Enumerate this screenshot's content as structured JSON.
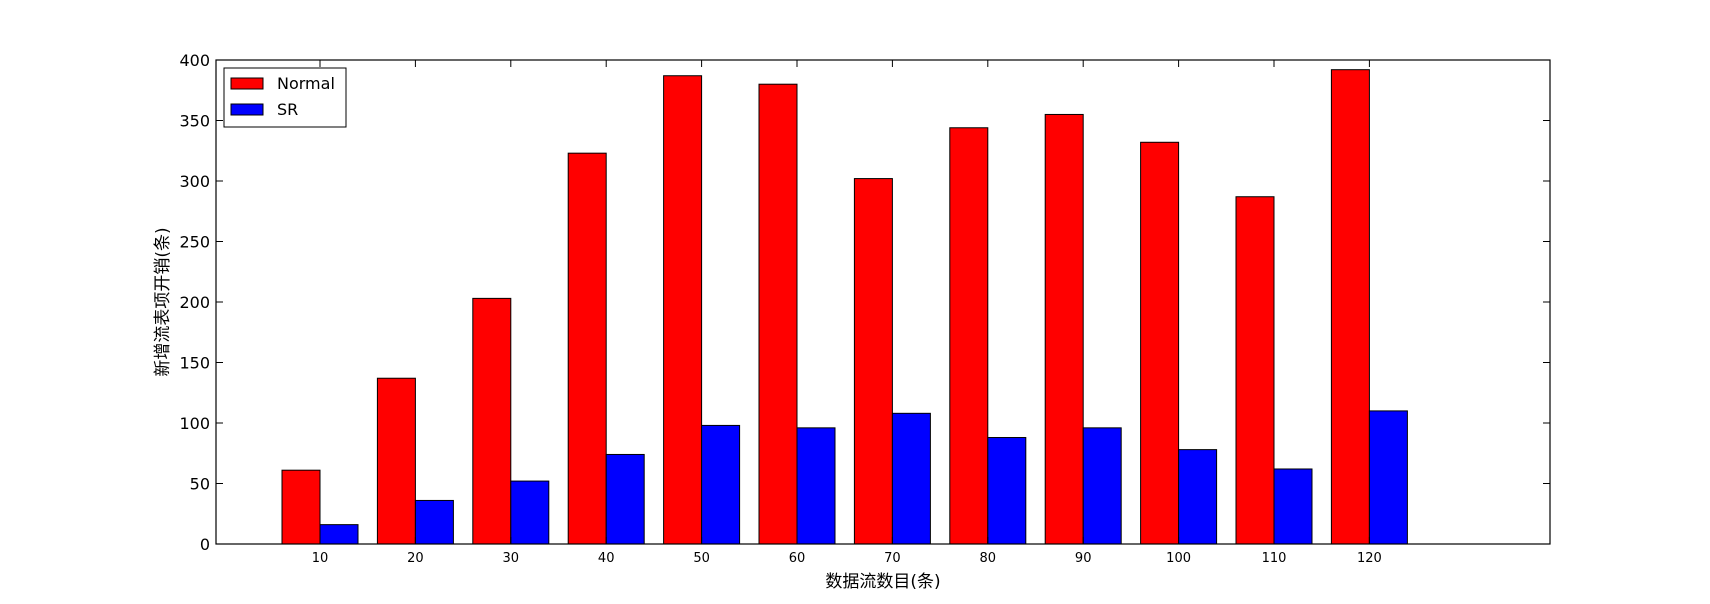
{
  "chart_data": {
    "type": "bar",
    "title": "",
    "xlabel": "数据流数目(条)",
    "ylabel": "新增流表项开销(条)",
    "categories": [
      "10",
      "20",
      "30",
      "40",
      "50",
      "60",
      "70",
      "80",
      "90",
      "100",
      "110",
      "120"
    ],
    "ylim": [
      0,
      400
    ],
    "yticks": [
      0,
      50,
      100,
      150,
      200,
      250,
      300,
      350,
      400
    ],
    "series": [
      {
        "name": "Normal",
        "color": "#ff0000",
        "values": [
          61,
          137,
          203,
          323,
          387,
          380,
          302,
          344,
          355,
          332,
          287,
          392
        ]
      },
      {
        "name": "SR",
        "color": "#0000ff",
        "values": [
          16,
          36,
          52,
          74,
          98,
          96,
          108,
          88,
          96,
          78,
          62,
          110
        ]
      }
    ],
    "legend_position": "top-left",
    "grid": false
  }
}
